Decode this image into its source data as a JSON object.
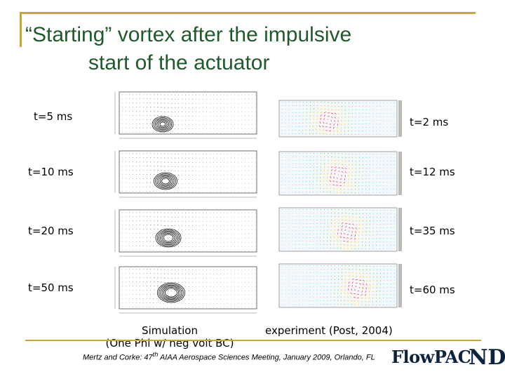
{
  "slide": {
    "title_line1": "“Starting” vortex after the impulsive",
    "title_line2": "start of the actuator"
  },
  "simulation": {
    "times": [
      "t=5 ms",
      "t=10 ms",
      "t=20 ms",
      "t=50 ms"
    ],
    "caption_line1": "Simulation",
    "caption_line2": "(One Phi w/ neg volt BC)"
  },
  "experiment": {
    "times": [
      "t=2 ms",
      "t=12 ms",
      "t=35 ms",
      "t=60 ms"
    ],
    "caption": "experiment (Post, 2004)"
  },
  "citation": {
    "prefix": "Mertz and Corke: 47",
    "sup": "th",
    "suffix": " AIAA Aerospace Sciences Meeting, January 2009, Orlando, FL"
  },
  "logo": {
    "text": "FlowPAC",
    "mark": "ND",
    "color": "#0c2340"
  },
  "colors": {
    "accent_line": "#c8a832",
    "title": "#1f5a2a"
  }
}
